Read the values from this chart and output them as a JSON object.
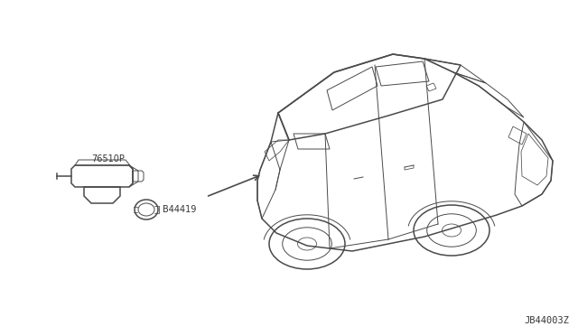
{
  "bg_color": "#ffffff",
  "line_color": "#4a4a4a",
  "text_color": "#333333",
  "part_label_1": "76510P",
  "part_label_2": "B44419",
  "diagram_code": "JB44003Z",
  "figsize": [
    6.4,
    3.72
  ],
  "dpi": 100
}
